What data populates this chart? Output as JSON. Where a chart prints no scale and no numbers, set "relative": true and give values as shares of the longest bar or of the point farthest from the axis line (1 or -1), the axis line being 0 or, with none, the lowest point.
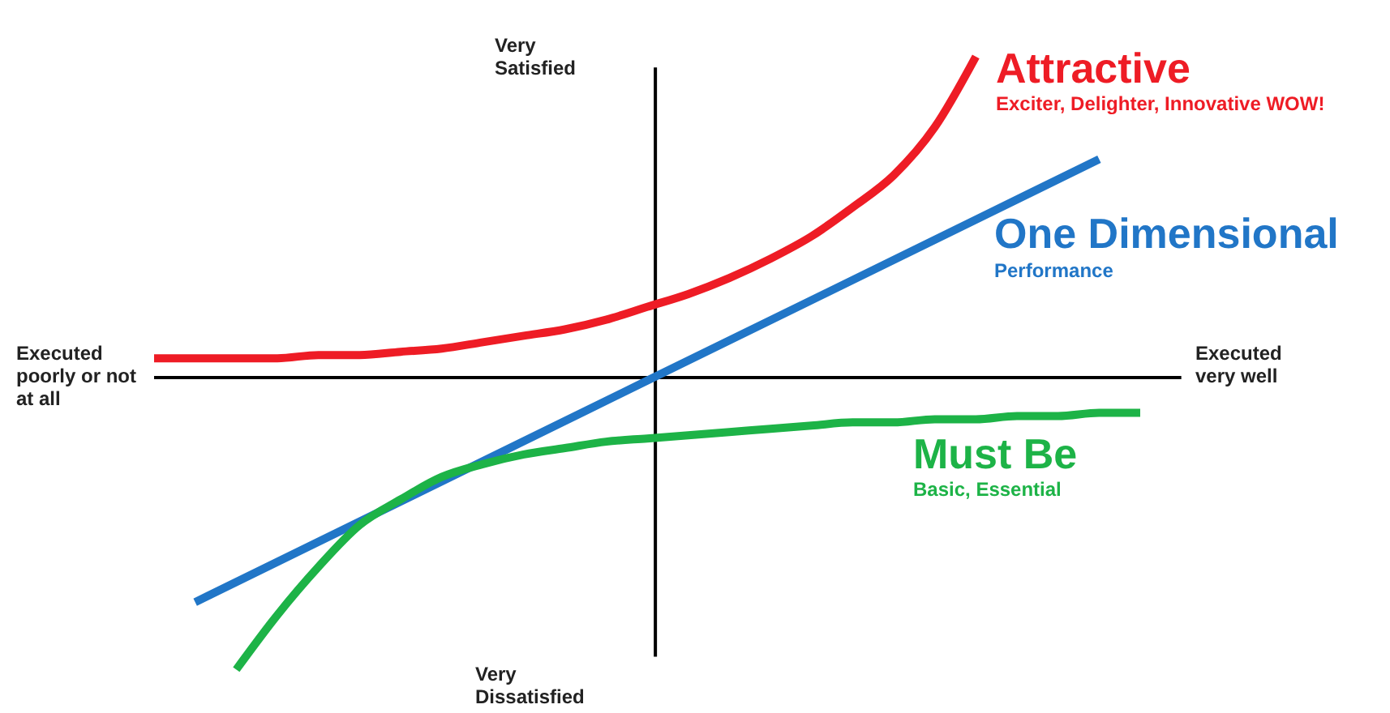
{
  "chart_data": {
    "type": "line",
    "relative": true,
    "categories": [
      null,
      null,
      null,
      null,
      null,
      null,
      null,
      null,
      null,
      null,
      null,
      null,
      null,
      null,
      null,
      null,
      null,
      null,
      null,
      null,
      null,
      null,
      null,
      null,
      null
    ],
    "series": [
      {
        "name": "Attractive",
        "color": "#ee1c25",
        "values": [
          0.06,
          0.06,
          0.06,
          0.06,
          0.07,
          0.07,
          0.08,
          0.09,
          0.11,
          0.13,
          0.15,
          0.18,
          0.22,
          0.26,
          0.31,
          0.37,
          0.44,
          0.53,
          0.63,
          0.78,
          1,
          null,
          null,
          null,
          null
        ]
      },
      {
        "name": "One Dimensional",
        "color": "#2176c7",
        "values": [
          null,
          -0.7,
          null,
          null,
          null,
          null,
          null,
          null,
          null,
          null,
          null,
          null,
          -0.01,
          null,
          null,
          null,
          null,
          null,
          null,
          null,
          null,
          null,
          null,
          0.68,
          null
        ]
      },
      {
        "name": "Must Be",
        "color": "#1db347",
        "values": [
          null,
          null,
          -0.91,
          -0.74,
          -0.59,
          -0.46,
          -0.38,
          -0.31,
          -0.27,
          -0.24,
          -0.22,
          -0.2,
          -0.19,
          -0.18,
          -0.17,
          -0.16,
          -0.15,
          -0.14,
          -0.14,
          -0.13,
          -0.13,
          -0.12,
          -0.12,
          -0.11,
          -0.11
        ]
      }
    ],
    "annotations": [
      "Very Satisfied",
      "Very Dissatisfied",
      "Executed poorly or not at all",
      "Executed very well",
      "Exciter, Delighter, Innovative WOW!",
      "Performance",
      "Basic, Essential"
    ]
  }
}
